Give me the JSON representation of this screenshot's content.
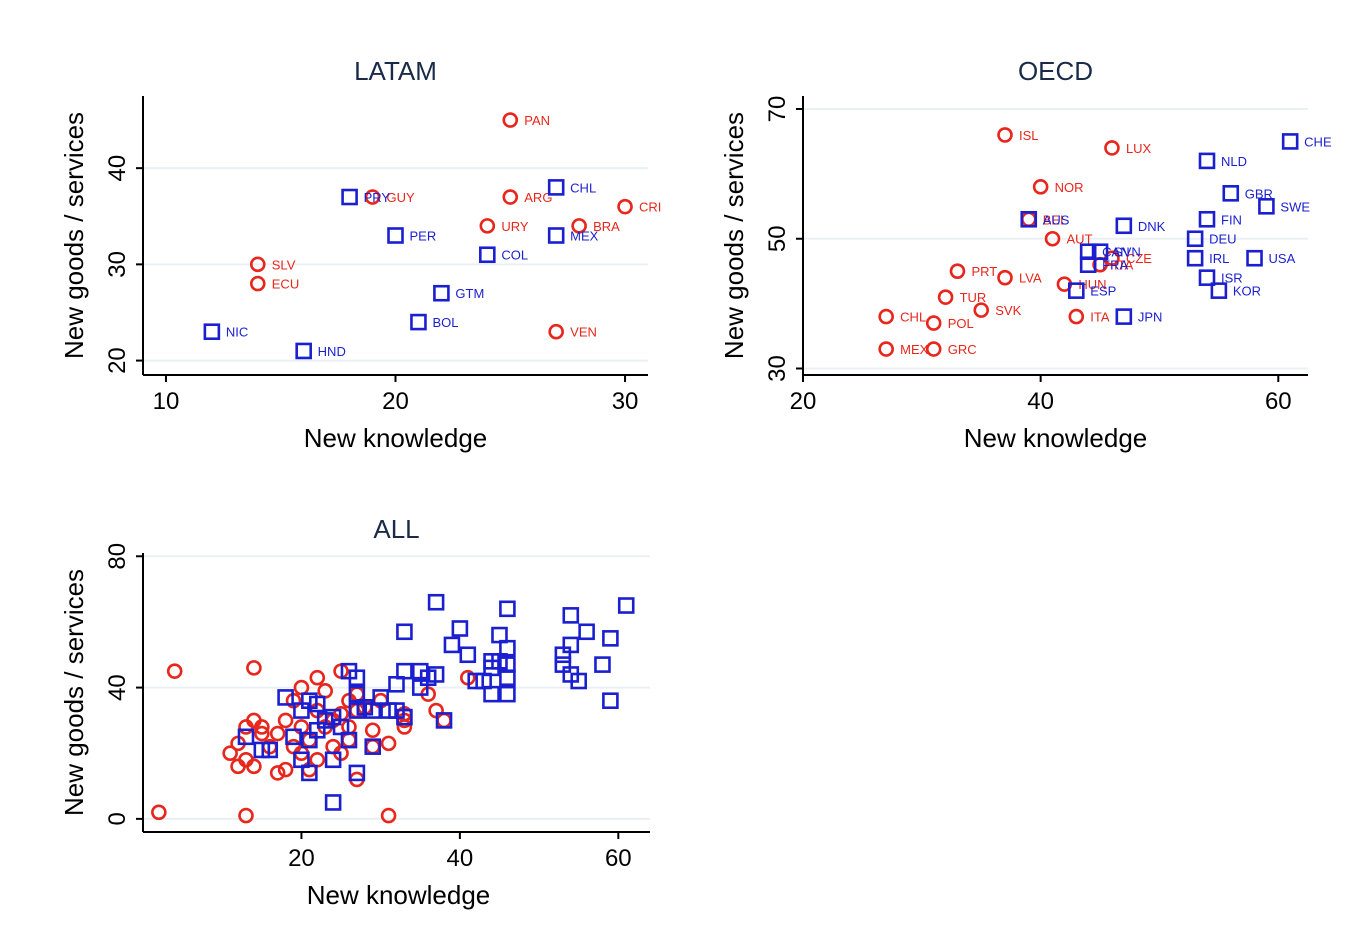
{
  "colors": {
    "red_series": "#e8261c",
    "blue_series": "#1a1fd0",
    "grid": "#eaf0f3",
    "axis": "#000000",
    "title": "#1a2b4a"
  },
  "chart_data": [
    {
      "type": "scatter",
      "title": "LATAM",
      "xlabel": "New knowledge",
      "ylabel": "New goods / services",
      "xlim": [
        9,
        31
      ],
      "ylim": [
        18.5,
        47.5
      ],
      "xticks": [
        10,
        20,
        30
      ],
      "xtick_labels": [
        "10",
        "20",
        "30"
      ],
      "yticks": [
        20,
        30,
        40
      ],
      "ytick_labels": [
        "20",
        "30",
        "40"
      ],
      "grid": true,
      "series": [
        {
          "name": "circle",
          "marker": "circle",
          "color": "#e8261c",
          "points": [
            {
              "x": 25,
              "y": 45,
              "label": "PAN"
            },
            {
              "x": 19,
              "y": 37,
              "label": "GUY"
            },
            {
              "x": 25,
              "y": 37,
              "label": "ARG"
            },
            {
              "x": 30,
              "y": 36,
              "label": "CRI"
            },
            {
              "x": 24,
              "y": 34,
              "label": "URY"
            },
            {
              "x": 28,
              "y": 34,
              "label": "BRA"
            },
            {
              "x": 14,
              "y": 30,
              "label": "SLV"
            },
            {
              "x": 14,
              "y": 28,
              "label": "ECU"
            },
            {
              "x": 27,
              "y": 23,
              "label": "VEN"
            }
          ]
        },
        {
          "name": "square",
          "marker": "square",
          "color": "#1a1fd0",
          "points": [
            {
              "x": 27,
              "y": 38,
              "label": "CHL"
            },
            {
              "x": 18,
              "y": 37,
              "label": "PRY"
            },
            {
              "x": 20,
              "y": 33,
              "label": "PER"
            },
            {
              "x": 27,
              "y": 33,
              "label": "MEX"
            },
            {
              "x": 24,
              "y": 31,
              "label": "COL"
            },
            {
              "x": 22,
              "y": 27,
              "label": "GTM"
            },
            {
              "x": 21,
              "y": 24,
              "label": "BOL"
            },
            {
              "x": 12,
              "y": 23,
              "label": "NIC"
            },
            {
              "x": 16,
              "y": 21,
              "label": "HND"
            }
          ]
        }
      ]
    },
    {
      "type": "scatter",
      "title": "OECD",
      "xlabel": "New knowledge",
      "ylabel": "New goods / services",
      "xlim": [
        20,
        62.5
      ],
      "ylim": [
        29,
        72
      ],
      "xticks": [
        20,
        40,
        60
      ],
      "xtick_labels": [
        "20",
        "40",
        "60"
      ],
      "yticks": [
        30,
        50,
        70
      ],
      "ytick_labels": [
        "30",
        "50",
        "70"
      ],
      "grid": true,
      "series": [
        {
          "name": "circle",
          "marker": "circle",
          "color": "#e8261c",
          "points": [
            {
              "x": 37,
              "y": 66,
              "label": "ISL"
            },
            {
              "x": 46,
              "y": 64,
              "label": "LUX"
            },
            {
              "x": 40,
              "y": 58,
              "label": "NOR"
            },
            {
              "x": 39,
              "y": 53,
              "label": "BEL"
            },
            {
              "x": 41,
              "y": 50,
              "label": "AUT"
            },
            {
              "x": 46,
              "y": 47,
              "label": "CZE"
            },
            {
              "x": 45,
              "y": 46,
              "label": "ITA"
            },
            {
              "x": 33,
              "y": 45,
              "label": "PRT"
            },
            {
              "x": 37,
              "y": 44,
              "label": "LVA"
            },
            {
              "x": 42,
              "y": 43,
              "label": "HUN"
            },
            {
              "x": 32,
              "y": 41,
              "label": "TUR"
            },
            {
              "x": 35,
              "y": 39,
              "label": "SVK"
            },
            {
              "x": 27,
              "y": 38,
              "label": "CHL"
            },
            {
              "x": 31,
              "y": 37,
              "label": "POL"
            },
            {
              "x": 43,
              "y": 38,
              "label": "ITA"
            },
            {
              "x": 27,
              "y": 33,
              "label": "MEX"
            },
            {
              "x": 31,
              "y": 33,
              "label": "GRC"
            }
          ]
        },
        {
          "name": "square",
          "marker": "square",
          "color": "#1a1fd0",
          "points": [
            {
              "x": 61,
              "y": 65,
              "label": "CHE"
            },
            {
              "x": 54,
              "y": 62,
              "label": "NLD"
            },
            {
              "x": 56,
              "y": 57,
              "label": "GBR"
            },
            {
              "x": 59,
              "y": 55,
              "label": "SWE"
            },
            {
              "x": 54,
              "y": 53,
              "label": "FIN"
            },
            {
              "x": 39,
              "y": 53,
              "label": "AUS"
            },
            {
              "x": 47,
              "y": 52,
              "label": "DNK"
            },
            {
              "x": 53,
              "y": 50,
              "label": "DEU"
            },
            {
              "x": 45,
              "y": 48,
              "label": "SVN"
            },
            {
              "x": 44,
              "y": 48,
              "label": "CAN"
            },
            {
              "x": 53,
              "y": 47,
              "label": "IRL"
            },
            {
              "x": 58,
              "y": 47,
              "label": "USA"
            },
            {
              "x": 44,
              "y": 46,
              "label": "FRA"
            },
            {
              "x": 54,
              "y": 44,
              "label": "ISR"
            },
            {
              "x": 43,
              "y": 42,
              "label": "ESP"
            },
            {
              "x": 55,
              "y": 42,
              "label": "KOR"
            },
            {
              "x": 47,
              "y": 38,
              "label": "JPN"
            }
          ]
        }
      ]
    },
    {
      "type": "scatter",
      "title": "ALL",
      "xlabel": "New knowledge",
      "ylabel": "New goods / services",
      "xlim": [
        0,
        64
      ],
      "ylim": [
        -4,
        81
      ],
      "xticks": [
        20,
        40,
        60
      ],
      "xtick_labels": [
        "20",
        "40",
        "60"
      ],
      "yticks": [
        0,
        40,
        80
      ],
      "ytick_labels": [
        "0",
        "40",
        "80"
      ],
      "grid": true,
      "series": [
        {
          "name": "circle",
          "marker": "circle",
          "color": "#e8261c",
          "points": [
            {
              "x": 4,
              "y": 45
            },
            {
              "x": 2,
              "y": 2
            },
            {
              "x": 13,
              "y": 1
            },
            {
              "x": 31,
              "y": 1
            },
            {
              "x": 14,
              "y": 46
            },
            {
              "x": 22,
              "y": 43
            },
            {
              "x": 25,
              "y": 45
            },
            {
              "x": 20,
              "y": 40
            },
            {
              "x": 23,
              "y": 39
            },
            {
              "x": 27,
              "y": 38
            },
            {
              "x": 26,
              "y": 36
            },
            {
              "x": 28,
              "y": 34
            },
            {
              "x": 30,
              "y": 36
            },
            {
              "x": 33,
              "y": 32
            },
            {
              "x": 25,
              "y": 32
            },
            {
              "x": 22,
              "y": 33
            },
            {
              "x": 19,
              "y": 36
            },
            {
              "x": 18,
              "y": 30
            },
            {
              "x": 20,
              "y": 28
            },
            {
              "x": 23,
              "y": 28
            },
            {
              "x": 24,
              "y": 30
            },
            {
              "x": 26,
              "y": 28
            },
            {
              "x": 29,
              "y": 27
            },
            {
              "x": 15,
              "y": 28
            },
            {
              "x": 14,
              "y": 30
            },
            {
              "x": 13,
              "y": 28
            },
            {
              "x": 12,
              "y": 23
            },
            {
              "x": 11,
              "y": 20
            },
            {
              "x": 12,
              "y": 16
            },
            {
              "x": 14,
              "y": 16
            },
            {
              "x": 17,
              "y": 14
            },
            {
              "x": 18,
              "y": 15
            },
            {
              "x": 20,
              "y": 20
            },
            {
              "x": 22,
              "y": 18
            },
            {
              "x": 24,
              "y": 22
            },
            {
              "x": 25,
              "y": 20
            },
            {
              "x": 26,
              "y": 24
            },
            {
              "x": 21,
              "y": 24
            },
            {
              "x": 19,
              "y": 22
            },
            {
              "x": 16,
              "y": 22
            },
            {
              "x": 15,
              "y": 26
            },
            {
              "x": 17,
              "y": 26
            },
            {
              "x": 27,
              "y": 12
            },
            {
              "x": 29,
              "y": 22
            },
            {
              "x": 31,
              "y": 23
            },
            {
              "x": 33,
              "y": 30
            },
            {
              "x": 36,
              "y": 38
            },
            {
              "x": 37,
              "y": 33
            },
            {
              "x": 38,
              "y": 30
            },
            {
              "x": 41,
              "y": 43
            },
            {
              "x": 33,
              "y": 28
            },
            {
              "x": 21,
              "y": 15
            },
            {
              "x": 13,
              "y": 18
            },
            {
              "x": 27,
              "y": 33
            }
          ]
        },
        {
          "name": "square",
          "marker": "square",
          "color": "#1a1fd0",
          "points": [
            {
              "x": 61,
              "y": 65
            },
            {
              "x": 54,
              "y": 62
            },
            {
              "x": 56,
              "y": 57
            },
            {
              "x": 59,
              "y": 55
            },
            {
              "x": 54,
              "y": 53
            },
            {
              "x": 53,
              "y": 50
            },
            {
              "x": 53,
              "y": 47
            },
            {
              "x": 58,
              "y": 47
            },
            {
              "x": 54,
              "y": 44
            },
            {
              "x": 55,
              "y": 42
            },
            {
              "x": 59,
              "y": 36
            },
            {
              "x": 46,
              "y": 64
            },
            {
              "x": 45,
              "y": 56
            },
            {
              "x": 46,
              "y": 52
            },
            {
              "x": 44,
              "y": 48
            },
            {
              "x": 45,
              "y": 48
            },
            {
              "x": 44,
              "y": 46
            },
            {
              "x": 46,
              "y": 47
            },
            {
              "x": 43,
              "y": 42
            },
            {
              "x": 44,
              "y": 38
            },
            {
              "x": 46,
              "y": 38
            },
            {
              "x": 46,
              "y": 43
            },
            {
              "x": 37,
              "y": 66
            },
            {
              "x": 40,
              "y": 58
            },
            {
              "x": 39,
              "y": 53
            },
            {
              "x": 41,
              "y": 50
            },
            {
              "x": 42,
              "y": 42
            },
            {
              "x": 36,
              "y": 43
            },
            {
              "x": 37,
              "y": 44
            },
            {
              "x": 35,
              "y": 40
            },
            {
              "x": 33,
              "y": 57
            },
            {
              "x": 33,
              "y": 45
            },
            {
              "x": 35,
              "y": 45
            },
            {
              "x": 32,
              "y": 41
            },
            {
              "x": 38,
              "y": 30
            },
            {
              "x": 26,
              "y": 45
            },
            {
              "x": 27,
              "y": 43
            },
            {
              "x": 27,
              "y": 38
            },
            {
              "x": 28,
              "y": 34
            },
            {
              "x": 30,
              "y": 37
            },
            {
              "x": 29,
              "y": 33
            },
            {
              "x": 32,
              "y": 33
            },
            {
              "x": 27,
              "y": 33
            },
            {
              "x": 31,
              "y": 33
            },
            {
              "x": 26,
              "y": 24
            },
            {
              "x": 24,
              "y": 31
            },
            {
              "x": 22,
              "y": 27
            },
            {
              "x": 21,
              "y": 24
            },
            {
              "x": 18,
              "y": 37
            },
            {
              "x": 20,
              "y": 33
            },
            {
              "x": 21,
              "y": 36
            },
            {
              "x": 22,
              "y": 35
            },
            {
              "x": 19,
              "y": 25
            },
            {
              "x": 15,
              "y": 21
            },
            {
              "x": 16,
              "y": 21
            },
            {
              "x": 13,
              "y": 25
            },
            {
              "x": 24,
              "y": 18
            },
            {
              "x": 27,
              "y": 14
            },
            {
              "x": 21,
              "y": 14
            },
            {
              "x": 24,
              "y": 5
            },
            {
              "x": 29,
              "y": 22
            },
            {
              "x": 25,
              "y": 28
            },
            {
              "x": 23,
              "y": 30
            },
            {
              "x": 20,
              "y": 18
            },
            {
              "x": 33,
              "y": 31
            }
          ]
        }
      ]
    }
  ]
}
